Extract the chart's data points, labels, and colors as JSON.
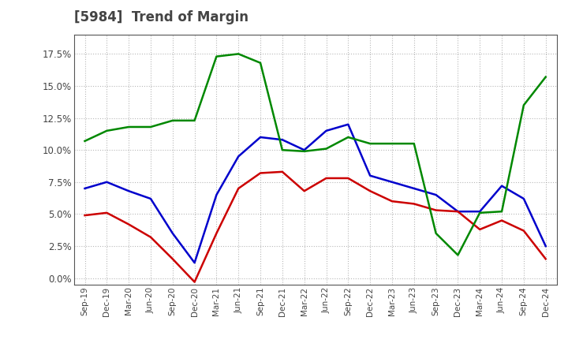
{
  "title": "[5984]  Trend of Margin",
  "x_labels": [
    "Sep-19",
    "Dec-19",
    "Mar-20",
    "Jun-20",
    "Sep-20",
    "Dec-20",
    "Mar-21",
    "Jun-21",
    "Sep-21",
    "Dec-21",
    "Mar-22",
    "Jun-22",
    "Sep-22",
    "Dec-22",
    "Mar-23",
    "Jun-23",
    "Sep-23",
    "Dec-23",
    "Mar-24",
    "Jun-24",
    "Sep-24",
    "Dec-24"
  ],
  "ordinary_income": [
    7.0,
    7.5,
    6.8,
    6.2,
    3.5,
    1.2,
    6.5,
    9.5,
    11.0,
    10.8,
    10.0,
    11.5,
    12.0,
    8.0,
    7.5,
    7.0,
    6.5,
    5.2,
    5.2,
    7.2,
    6.2,
    2.5
  ],
  "net_income": [
    4.9,
    5.1,
    4.2,
    3.2,
    1.5,
    -0.3,
    3.5,
    7.0,
    8.2,
    8.3,
    6.8,
    7.8,
    7.8,
    6.8,
    6.0,
    5.8,
    5.3,
    5.2,
    3.8,
    4.5,
    3.7,
    1.5
  ],
  "operating_cashflow": [
    10.7,
    11.5,
    11.8,
    11.8,
    12.3,
    12.3,
    17.3,
    17.5,
    16.8,
    10.0,
    9.9,
    10.1,
    11.0,
    10.5,
    10.5,
    10.5,
    3.5,
    1.8,
    5.1,
    5.2,
    13.5,
    15.7
  ],
  "ordinary_income_color": "#0000cc",
  "net_income_color": "#cc0000",
  "operating_cashflow_color": "#008800",
  "background_color": "#ffffff",
  "grid_color": "#999999",
  "ylim": [
    -0.5,
    19.0
  ],
  "yticks": [
    0.0,
    2.5,
    5.0,
    7.5,
    10.0,
    12.5,
    15.0,
    17.5
  ],
  "title_fontsize": 12
}
